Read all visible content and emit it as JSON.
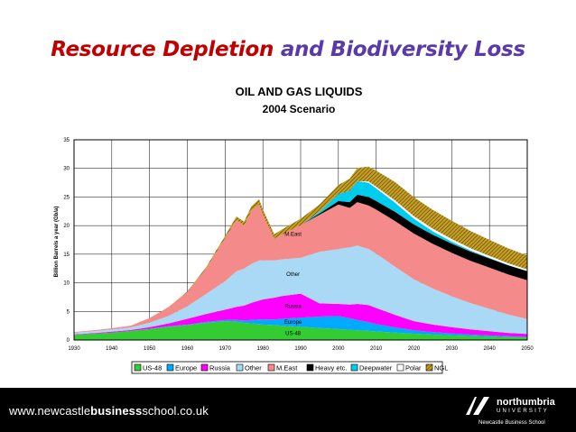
{
  "slide": {
    "title_part1": "Resource Depletion",
    "title_part2": "and Biodiversity Loss"
  },
  "footer": {
    "url_prefix": "www.newcastle",
    "url_bold": "business",
    "url_suffix": "school.co.uk",
    "logo_name": "northumbria",
    "logo_university": "UNIVERSITY",
    "logo_school": "Newcastle Business School"
  },
  "chart_data": {
    "type": "area",
    "title": "OIL AND GAS LIQUIDS",
    "subtitle": "2004 Scenario",
    "xlabel": "",
    "ylabel": "Billion Barrels a year (Gb/a)",
    "xlim": [
      1930,
      2050
    ],
    "ylim": [
      0,
      35
    ],
    "x_ticks": [
      1930,
      1940,
      1950,
      1960,
      1970,
      1980,
      1990,
      2000,
      2010,
      2020,
      2030,
      2040,
      2050
    ],
    "y_ticks": [
      0,
      5,
      10,
      15,
      20,
      25,
      30,
      35
    ],
    "grid": true,
    "legend_position": "bottom",
    "x": [
      1930,
      1935,
      1940,
      1945,
      1950,
      1955,
      1960,
      1965,
      1970,
      1973,
      1975,
      1977,
      1979,
      1980,
      1983,
      1985,
      1990,
      1995,
      2000,
      2003,
      2005,
      2008,
      2010,
      2015,
      2020,
      2025,
      2030,
      2035,
      2040,
      2045,
      2050
    ],
    "series": [
      {
        "name": "US-48",
        "color": "#33cc33",
        "values": [
          0.9,
          1.1,
          1.3,
          1.6,
          1.9,
          2.3,
          2.6,
          3.0,
          3.3,
          3.2,
          3.0,
          2.9,
          2.8,
          2.7,
          2.6,
          2.5,
          2.3,
          2.1,
          1.9,
          1.8,
          1.7,
          1.6,
          1.5,
          1.3,
          1.1,
          0.95,
          0.8,
          0.7,
          0.6,
          0.5,
          0.45
        ]
      },
      {
        "name": "Europe",
        "color": "#00aaff",
        "values": [
          0.0,
          0.0,
          0.0,
          0.0,
          0.05,
          0.1,
          0.1,
          0.15,
          0.2,
          0.3,
          0.4,
          0.6,
          0.8,
          0.9,
          1.0,
          1.2,
          1.6,
          2.0,
          2.3,
          2.0,
          1.8,
          1.5,
          1.3,
          0.9,
          0.6,
          0.45,
          0.35,
          0.25,
          0.2,
          0.15,
          0.1
        ]
      },
      {
        "name": "Russia",
        "color": "#ff00ff",
        "values": [
          0.1,
          0.1,
          0.15,
          0.15,
          0.3,
          0.5,
          1.0,
          1.4,
          1.8,
          2.3,
          2.6,
          3.0,
          3.3,
          3.5,
          3.8,
          4.0,
          4.2,
          2.3,
          2.1,
          2.4,
          2.8,
          3.0,
          2.8,
          2.2,
          1.6,
          1.3,
          1.1,
          0.9,
          0.75,
          0.6,
          0.5
        ]
      },
      {
        "name": "Other",
        "color": "#a9d9f5",
        "values": [
          0.3,
          0.35,
          0.4,
          0.45,
          0.8,
          1.3,
          2.2,
          3.5,
          5.0,
          6.2,
          6.5,
          6.8,
          7.0,
          6.8,
          6.5,
          6.4,
          6.3,
          9.0,
          9.6,
          10.0,
          10.2,
          9.8,
          9.5,
          8.4,
          7.3,
          6.3,
          5.4,
          4.6,
          3.9,
          3.2,
          2.6
        ]
      },
      {
        "name": "M.East",
        "color": "#f48a8a",
        "values": [
          0.1,
          0.15,
          0.2,
          0.3,
          0.8,
          1.5,
          2.5,
          4.5,
          7.5,
          9.0,
          7.5,
          9.3,
          9.8,
          8.0,
          3.8,
          4.3,
          5.7,
          6.5,
          7.8,
          6.9,
          7.6,
          7.6,
          7.7,
          8.0,
          8.0,
          7.8,
          7.6,
          7.4,
          7.2,
          7.0,
          6.8
        ]
      },
      {
        "name": "Heavy etc.",
        "color": "#000000",
        "values": [
          0,
          0,
          0,
          0,
          0,
          0,
          0,
          0,
          0,
          0,
          0,
          0,
          0,
          0,
          0,
          0,
          0,
          0.2,
          0.6,
          1.0,
          1.3,
          1.5,
          1.5,
          1.6,
          1.6,
          1.6,
          1.6,
          1.6,
          1.6,
          1.6,
          1.6
        ]
      },
      {
        "name": "Deepwater",
        "color": "#00ccee",
        "values": [
          0,
          0,
          0,
          0,
          0,
          0,
          0,
          0,
          0,
          0,
          0,
          0,
          0,
          0,
          0,
          0,
          0,
          0.3,
          1.2,
          2.0,
          2.4,
          2.5,
          2.2,
          1.6,
          1.0,
          0.6,
          0.35,
          0.2,
          0.1,
          0.05,
          0.0
        ]
      },
      {
        "name": "Polar",
        "color": "#ffffff",
        "values": [
          0,
          0,
          0,
          0,
          0,
          0,
          0,
          0,
          0,
          0,
          0,
          0,
          0,
          0,
          0,
          0,
          0,
          0,
          0,
          0,
          0,
          0.2,
          0.3,
          0.4,
          0.45,
          0.45,
          0.45,
          0.4,
          0.35,
          0.3,
          0.3
        ]
      },
      {
        "name": "NGL",
        "color": "#c8a020",
        "pattern": "hatched",
        "values": [
          0,
          0,
          0,
          0,
          0,
          0.05,
          0.1,
          0.2,
          0.4,
          0.6,
          0.7,
          0.8,
          0.9,
          0.9,
          0.8,
          0.9,
          1.1,
          1.3,
          1.6,
          2.1,
          2.3,
          2.6,
          2.8,
          3.2,
          3.3,
          3.3,
          3.2,
          3.0,
          2.8,
          2.6,
          2.4
        ]
      }
    ],
    "annotations": [
      {
        "text": "M.East",
        "x": 1988,
        "y": 18.2
      },
      {
        "text": "Other",
        "x": 1988,
        "y": 11.2
      },
      {
        "text": "Russia",
        "x": 1988,
        "y": 5.6
      },
      {
        "text": "Europe",
        "x": 1988,
        "y": 2.8
      },
      {
        "text": "US-48",
        "x": 1988,
        "y": 0.9
      }
    ]
  }
}
